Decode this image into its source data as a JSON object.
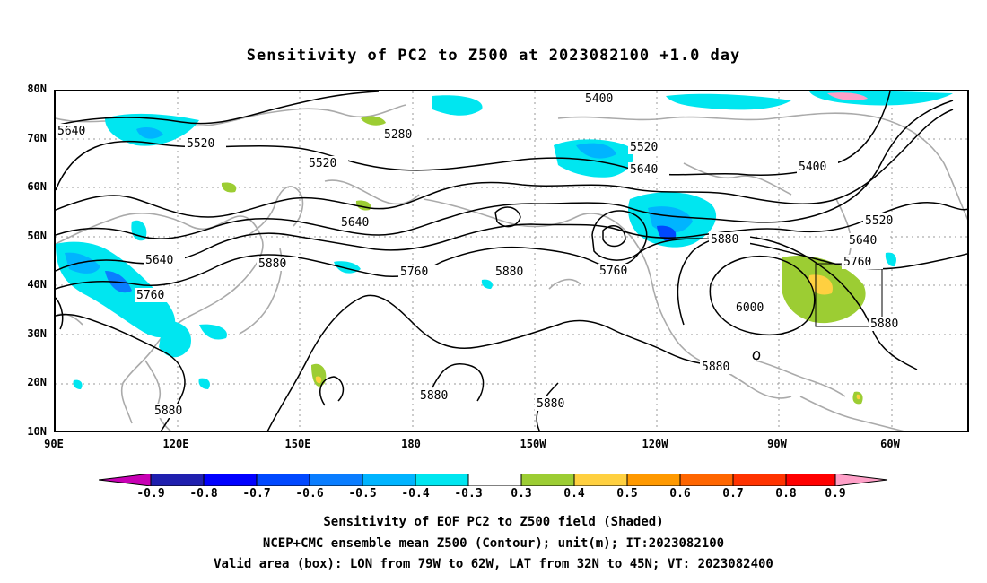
{
  "title": "Sensitivity of PC2 to Z500 at 2023082100 +1.0 day",
  "lat_labels": [
    "80N",
    "70N",
    "60N",
    "50N",
    "40N",
    "30N",
    "20N",
    "10N"
  ],
  "lon_labels": [
    "90E",
    "120E",
    "150E",
    "180",
    "150W",
    "120W",
    "90W",
    "60W"
  ],
  "contour_labels": {
    "c1": "5640",
    "c2": "5520",
    "c3": "5520",
    "c4": "5280",
    "c5": "5400",
    "c6": "5520",
    "c7": "5640",
    "c8": "5400",
    "c9": "5520",
    "c10": "5640",
    "c11": "5640",
    "c12": "5640",
    "c13": "5760",
    "c14": "5880",
    "c15": "5760",
    "c16": "5880",
    "c17": "5760",
    "c18": "5880",
    "c19": "5760",
    "c20": "6000",
    "c21": "5880",
    "c22": "5880",
    "c23": "5880",
    "c24": "5880",
    "c25": "5880"
  },
  "colorbar": {
    "colors": [
      "#1f1fae",
      "#0000ff",
      "#0048ff",
      "#0a7dff",
      "#00b4ff",
      "#00e6f0",
      "#ffffff",
      "#9ccd33",
      "#ffd040",
      "#ff9900",
      "#ff6600",
      "#ff3300",
      "#ff0000"
    ],
    "left_end_color": "#c800b4",
    "right_end_color": "#ffa0c8",
    "labels": [
      "-0.9",
      "-0.8",
      "-0.7",
      "-0.6",
      "-0.5",
      "-0.4",
      "-0.3",
      "0.3",
      "0.4",
      "0.5",
      "0.6",
      "0.7",
      "0.8",
      "0.9"
    ]
  },
  "captions": [
    "Sensitivity of EOF PC2 to Z500 field (Shaded)",
    "NCEP+CMC ensemble mean Z500 (Contour); unit(m); IT:2023082100",
    "Valid area (box): LON from 79W to 62W, LAT from 32N to 45N; VT: 2023082400"
  ]
}
